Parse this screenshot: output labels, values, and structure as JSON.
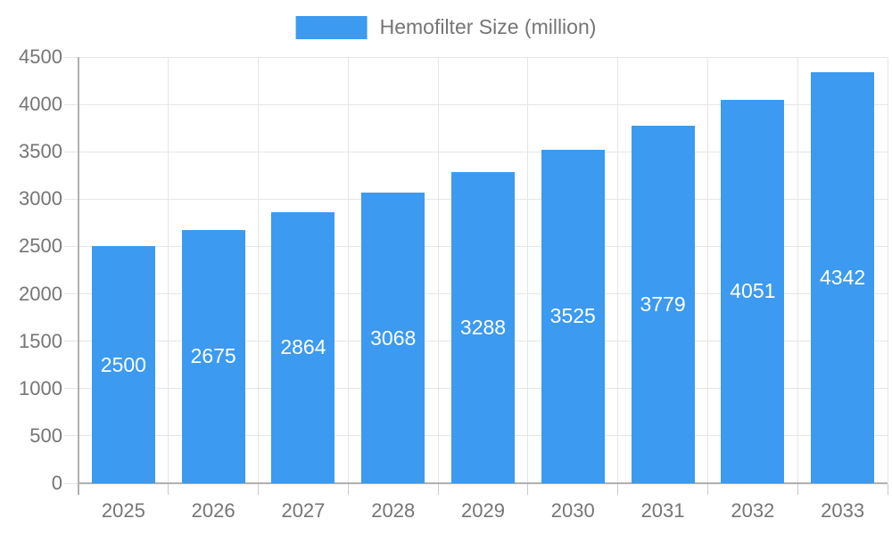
{
  "legend": {
    "label": "Hemofilter Size (million)",
    "swatch_color": "#3C9AF0"
  },
  "chart_data": {
    "type": "bar",
    "title": "",
    "categories": [
      "2025",
      "2026",
      "2027",
      "2028",
      "2029",
      "2030",
      "2031",
      "2032",
      "2033"
    ],
    "series": [
      {
        "name": "Hemofilter Size (million)",
        "values": [
          2500,
          2675,
          2864,
          3068,
          3288,
          3525,
          3779,
          4051,
          4342
        ]
      }
    ],
    "value_labels": [
      "2500",
      "2675",
      "2864",
      "3068",
      "3288",
      "3525",
      "3779",
      "4051",
      "4342"
    ],
    "xlabel": "",
    "ylabel": "",
    "ylim": [
      0,
      4500
    ],
    "ytick_step": 500,
    "yticks": [
      0,
      500,
      1000,
      1500,
      2000,
      2500,
      3000,
      3500,
      4000,
      4500
    ],
    "grid": true,
    "legend_position": "top",
    "colors": {
      "bar": "#3C9AF0",
      "gridline": "#e6e6e6",
      "axis_line": "#b0b0b0",
      "tick": "#c9c9c9",
      "axis_label": "#757575",
      "value_label": "#ffffff",
      "background": "#ffffff"
    }
  }
}
